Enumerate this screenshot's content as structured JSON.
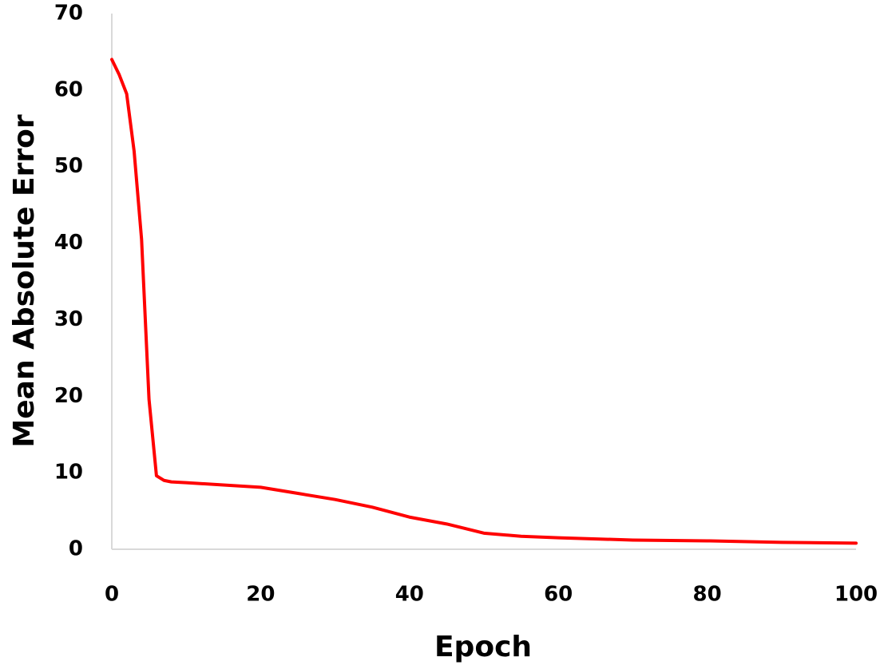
{
  "chart_data": {
    "type": "line",
    "x_label": "Epoch",
    "y_label": "Mean Absolute Error",
    "x": [
      0,
      1,
      2,
      3,
      4,
      5,
      6,
      7,
      8,
      10,
      15,
      20,
      25,
      30,
      35,
      40,
      45,
      50,
      55,
      60,
      70,
      80,
      90,
      100
    ],
    "series": [
      {
        "name": "MAE",
        "color": "#ff0000",
        "values": [
          64,
          62,
          59.5,
          52,
          40.5,
          19.6,
          9.6,
          9,
          8.8,
          8.7,
          8.4,
          8.1,
          7.3,
          6.5,
          5.5,
          4.2,
          3.3,
          2.1,
          1.7,
          1.5,
          1.2,
          1.1,
          0.9,
          0.8
        ]
      }
    ],
    "xlim": [
      0,
      100
    ],
    "xticks": [
      0,
      20,
      40,
      60,
      80,
      100
    ],
    "ylim": [
      0,
      70
    ],
    "yticks": [
      0,
      10,
      20,
      30,
      40,
      50,
      60,
      70
    ],
    "grid": false
  }
}
